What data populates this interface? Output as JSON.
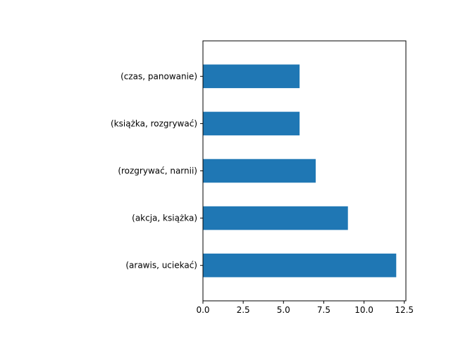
{
  "chart_data": {
    "type": "bar",
    "orientation": "horizontal",
    "categories": [
      "(arawis, uciekać)",
      "(akcja, książka)",
      "(rozgrywać, narnii)",
      "(książka, rozgrywać)",
      "(czas, panowanie)"
    ],
    "values": [
      12,
      9,
      7,
      6,
      6
    ],
    "xlim": [
      0,
      12.6
    ],
    "xticks": [
      0,
      2.5,
      5,
      7.5,
      10,
      12.5
    ],
    "xtick_labels": [
      "0.0",
      "2.5",
      "5.0",
      "7.5",
      "10.0",
      "12.5"
    ],
    "title": "",
    "xlabel": "",
    "ylabel": "",
    "grid": false,
    "legend": "none",
    "bar_color": "#1f77b4"
  }
}
